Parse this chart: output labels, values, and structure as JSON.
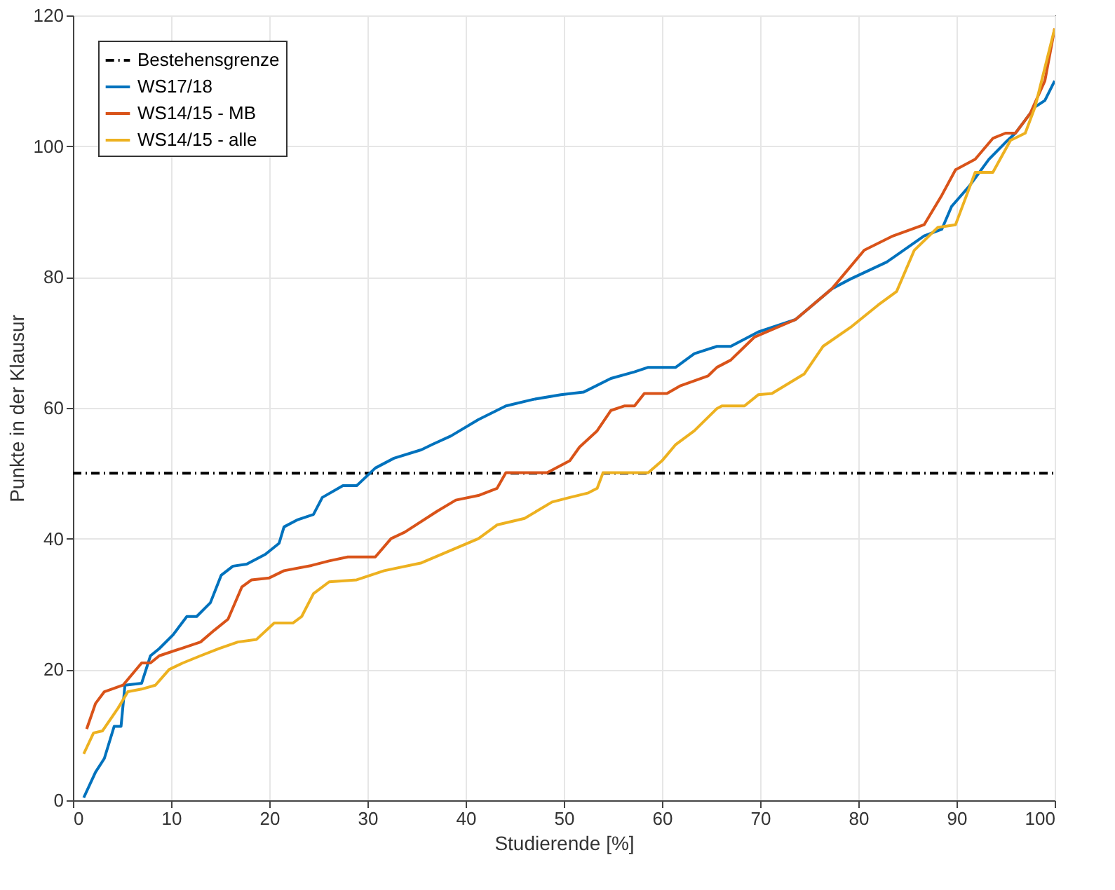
{
  "chart_data": {
    "type": "line",
    "xlabel": "Studierende [%]",
    "ylabel": "Punkte in der Klausur",
    "xlim": [
      0,
      100
    ],
    "ylim": [
      0,
      120
    ],
    "xticks": [
      0,
      10,
      20,
      30,
      40,
      50,
      60,
      70,
      80,
      90,
      100
    ],
    "yticks": [
      0,
      20,
      40,
      60,
      80,
      100,
      120
    ],
    "grid": true,
    "legend": "top left",
    "marker": "none",
    "series": [
      {
        "name": "Bestehensgrenze",
        "color": "#000000",
        "line_style": "dashed",
        "x": [
          0,
          100
        ],
        "values": [
          50,
          50
        ]
      },
      {
        "name": "WS17/18",
        "color": "#0072bd",
        "line_style": "solid",
        "x": [
          1.1,
          2.3,
          3.2,
          4.2,
          4.9,
          5.3,
          7,
          7.9,
          8.8,
          10.2,
          11.6,
          12.6,
          14,
          15.1,
          16.3,
          17.7,
          19.6,
          21,
          21.5,
          22.9,
          24.5,
          25.4,
          27.5,
          28.9,
          30.8,
          32.7,
          35.5,
          36.6,
          38.5,
          41.3,
          44.1,
          46.9,
          49.7,
          52,
          54.8,
          57.2,
          58.6,
          61.4,
          63.3,
          65.6,
          67,
          69.8,
          73.6,
          77.3,
          79.2,
          82.9,
          86.7,
          88.5,
          89.5,
          91.3,
          93.3,
          95,
          96,
          97,
          98,
          99,
          100
        ],
        "values": [
          0.4,
          4.3,
          6.4,
          11.3,
          11.3,
          17.6,
          17.9,
          22.1,
          23.2,
          25.3,
          28.1,
          28.1,
          30.2,
          34.4,
          35.8,
          36.1,
          37.6,
          39.3,
          41.8,
          42.9,
          43.7,
          46.3,
          48.1,
          48.1,
          50.8,
          52.3,
          53.6,
          54.4,
          55.7,
          58.2,
          60.3,
          61.3,
          62,
          62.4,
          64.5,
          65.5,
          66.2,
          66.2,
          68.3,
          69.4,
          69.4,
          71.6,
          73.5,
          78.2,
          79.7,
          82.3,
          86.3,
          87.3,
          90.8,
          93.9,
          98,
          100.6,
          102,
          104,
          106,
          107,
          110
        ]
      },
      {
        "name": "WS14/15 - MB",
        "color": "#d95319",
        "line_style": "solid",
        "x": [
          1.4,
          2.3,
          3.2,
          5.1,
          7,
          7.9,
          8.8,
          11.2,
          13,
          14.4,
          15.8,
          17.2,
          18.2,
          20,
          21.5,
          24.3,
          26.1,
          28,
          30.8,
          32.4,
          33.8,
          37.1,
          39,
          41.3,
          43.2,
          44.1,
          48.3,
          50.6,
          51.6,
          53.4,
          54.8,
          56.2,
          57.2,
          58.2,
          60.5,
          61.9,
          64.7,
          65.6,
          67,
          69.4,
          73.6,
          77.3,
          80.6,
          83.4,
          86.7,
          88.5,
          89.9,
          91.9,
          93.7,
          95,
          96,
          97.5,
          99,
          100
        ],
        "values": [
          10.9,
          14.8,
          16.6,
          17.6,
          21,
          21,
          22.1,
          23.3,
          24.2,
          26,
          27.7,
          32.6,
          33.7,
          34,
          35.1,
          35.9,
          36.6,
          37.2,
          37.2,
          40,
          41,
          44.2,
          45.9,
          46.6,
          47.7,
          50.1,
          50.1,
          51.9,
          54,
          56.5,
          59.6,
          60.3,
          60.3,
          62.2,
          62.2,
          63.4,
          64.9,
          66.2,
          67.3,
          70.8,
          73.5,
          78.2,
          84.1,
          86.2,
          88,
          92.5,
          96.4,
          98,
          101.2,
          102,
          102,
          105,
          110,
          118
        ]
      },
      {
        "name": "WS14/15 - alle",
        "color": "#edb120",
        "line_style": "solid",
        "x": [
          1.1,
          2.1,
          3,
          4.6,
          5.6,
          7,
          8.4,
          9.8,
          11.2,
          13,
          14.9,
          16.8,
          18.7,
          20.5,
          22.4,
          23.3,
          24.5,
          26.1,
          28.9,
          31.7,
          35.5,
          41.3,
          43.2,
          46,
          48.8,
          50.6,
          52.5,
          53.4,
          54,
          58.6,
          60,
          61.4,
          63.3,
          65.6,
          66.1,
          68.4,
          69.8,
          71.2,
          74.5,
          76.4,
          79.2,
          82,
          83.9,
          85.7,
          88.1,
          89.9,
          91.9,
          93.7,
          95.5,
          97,
          98,
          99,
          100
        ],
        "values": [
          7.1,
          10.3,
          10.6,
          14.1,
          16.6,
          17,
          17.6,
          20,
          21,
          22.1,
          23.2,
          24.2,
          24.6,
          27.1,
          27.1,
          28.1,
          31.6,
          33.4,
          33.7,
          35.1,
          36.3,
          40,
          42.1,
          43.1,
          45.6,
          46.3,
          47,
          47.7,
          50.1,
          50.1,
          51.9,
          54.4,
          56.5,
          59.9,
          60.3,
          60.3,
          62,
          62.2,
          65.2,
          69.4,
          72.3,
          75.7,
          77.8,
          84.1,
          87.6,
          88,
          96,
          96,
          100.9,
          102,
          106,
          112,
          118
        ]
      }
    ]
  }
}
